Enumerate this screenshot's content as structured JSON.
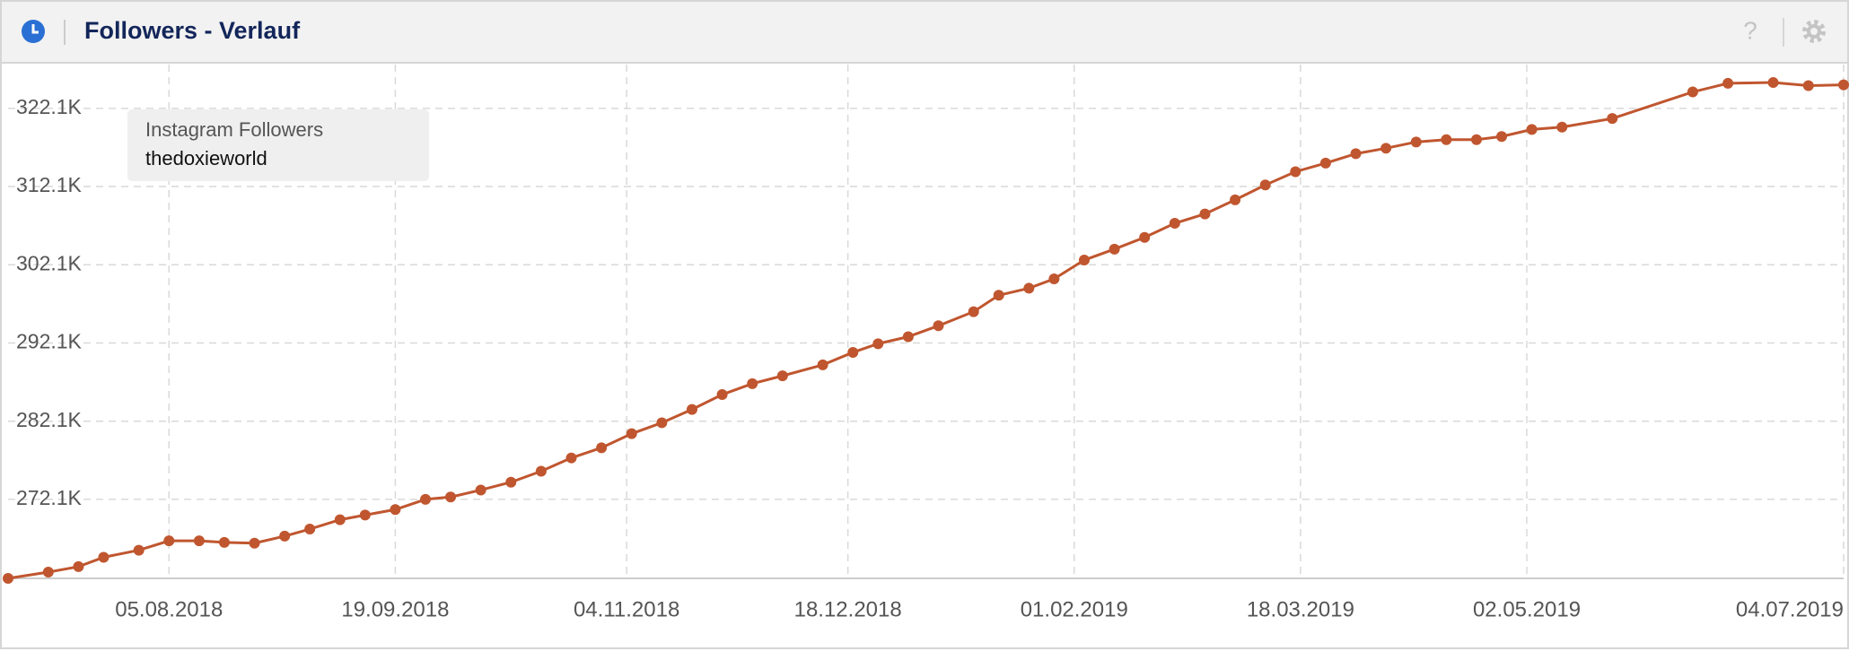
{
  "header": {
    "title": "Followers - Verlauf",
    "help": "?"
  },
  "chart_data": {
    "type": "line",
    "legend_title": "Instagram Followers",
    "x": [
      "04.07.2018",
      "12.07.2018",
      "18.07.2018",
      "23.07.2018",
      "30.07.2018",
      "05.08.2018",
      "11.08.2018",
      "16.08.2018",
      "22.08.2018",
      "28.08.2018",
      "02.09.2018",
      "08.09.2018",
      "13.09.2018",
      "19.09.2018",
      "25.09.2018",
      "30.09.2018",
      "06.10.2018",
      "12.10.2018",
      "18.10.2018",
      "24.10.2018",
      "30.10.2018",
      "05.11.2018",
      "11.11.2018",
      "17.11.2018",
      "23.11.2018",
      "29.11.2018",
      "05.12.2018",
      "13.12.2018",
      "19.12.2018",
      "24.12.2018",
      "30.12.2018",
      "05.01.2019",
      "12.01.2019",
      "17.01.2019",
      "23.01.2019",
      "28.01.2019",
      "03.02.2019",
      "09.02.2019",
      "15.02.2019",
      "21.02.2019",
      "27.02.2019",
      "05.03.2019",
      "11.03.2019",
      "17.03.2019",
      "23.03.2019",
      "29.03.2019",
      "04.04.2019",
      "10.04.2019",
      "16.04.2019",
      "22.04.2019",
      "27.04.2019",
      "03.05.2019",
      "09.05.2019",
      "19.05.2019",
      "04.06.2019",
      "11.06.2019",
      "20.06.2019",
      "27.06.2019",
      "04.07.2019"
    ],
    "series": [
      {
        "name": "thedoxieworld",
        "color": "#c0562f",
        "values": [
          262000,
          262800,
          263500,
          264700,
          265600,
          266800,
          266800,
          266600,
          266500,
          267400,
          268300,
          269500,
          270100,
          270800,
          272100,
          272400,
          273300,
          274300,
          275700,
          277400,
          278700,
          280500,
          281900,
          283600,
          285500,
          286900,
          287900,
          289300,
          290900,
          292000,
          292900,
          294300,
          296100,
          298200,
          299100,
          300300,
          302700,
          304100,
          305600,
          307400,
          308600,
          310400,
          312300,
          314000,
          315100,
          316300,
          317000,
          317800,
          318100,
          318100,
          318500,
          319400,
          319700,
          320800,
          324200,
          325300,
          325400,
          325000,
          325100
        ]
      }
    ],
    "xlim": [
      "04.07.2018",
      "04.07.2019"
    ],
    "xticks": [
      "05.08.2018",
      "19.09.2018",
      "04.11.2018",
      "18.12.2018",
      "01.02.2019",
      "18.03.2019",
      "02.05.2019",
      "04.07.2019"
    ],
    "ylim": [
      262000,
      327700
    ],
    "yticks": [
      {
        "value": 272100,
        "label": "272.1K"
      },
      {
        "value": 282100,
        "label": "282.1K"
      },
      {
        "value": 292100,
        "label": "292.1K"
      },
      {
        "value": 302100,
        "label": "302.1K"
      },
      {
        "value": 312100,
        "label": "312.1K"
      },
      {
        "value": 322100,
        "label": "322.1K"
      }
    ],
    "grid": true
  }
}
